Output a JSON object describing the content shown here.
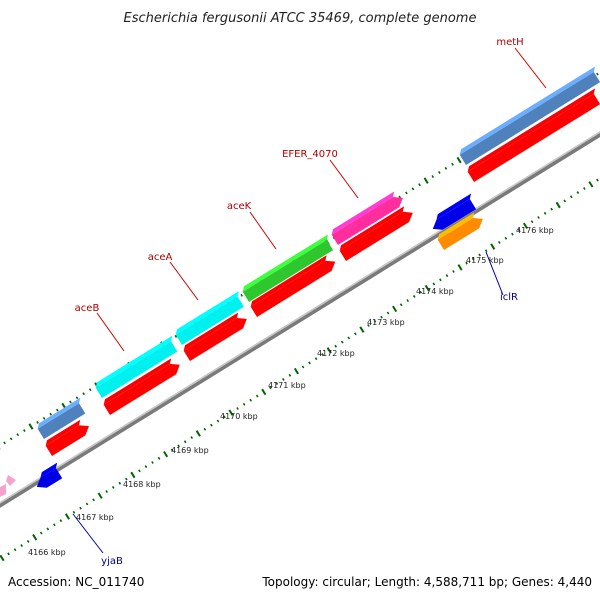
{
  "title": "Escherichia fergusonii ATCC 35469, complete genome",
  "footer": {
    "accession": "Accession: NC_011740",
    "summary": "Topology: circular; Length: 4,588,711 bp; Genes: 4,440"
  },
  "scale": {
    "ticks": [
      "4166 kbp",
      "4167 kbp",
      "4168 kbp",
      "4169 kbp",
      "4170 kbp",
      "4171 kbp",
      "4172 kbp",
      "4173 kbp",
      "4174 kbp",
      "4175 kbp",
      "4176 kbp"
    ]
  },
  "gene_labels": {
    "metH": "metH",
    "efer4070": "EFER_4070",
    "aceK": "aceK",
    "aceA": "aceA",
    "aceB": "aceB",
    "iclR": "iclR",
    "yjaB": "yjaB"
  },
  "colors": {
    "backbone": "#8c8c8c",
    "cds": "#ff0000",
    "steelblue_gene": "#4f81bd",
    "cyan_gene": "#00f0f0",
    "green_gene": "#2ec82e",
    "pink_gene": "#ff2d9e",
    "blue_gene": "#0000e6",
    "orange_gene": "#ff8c00",
    "tick": "#006400",
    "forward_label": "#b00000",
    "reverse_label": "#00008b"
  }
}
